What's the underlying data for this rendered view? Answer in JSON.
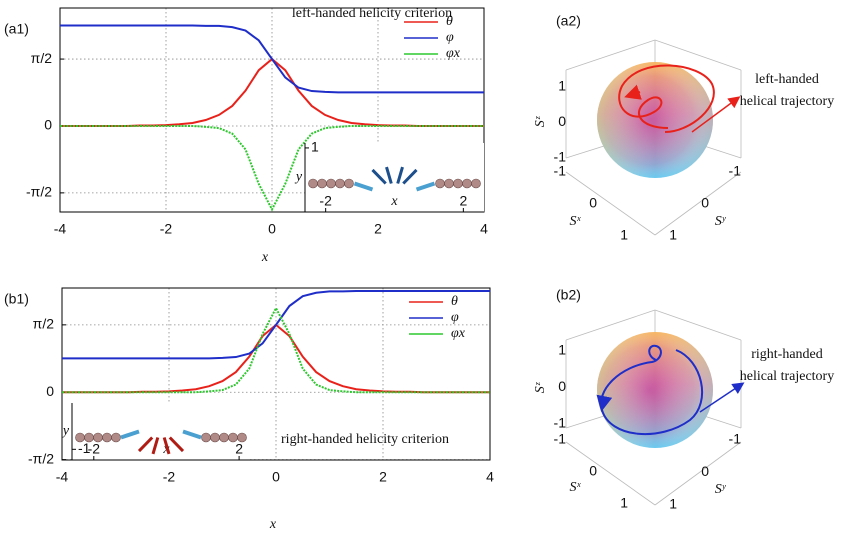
{
  "chart_data": [
    {
      "type": "line",
      "panel_label": "(a1)",
      "annotation": "left-handed helicity criterion",
      "xlabel": "x",
      "x": [
        -4,
        -3.75,
        -3.5,
        -3.25,
        -3,
        -2.75,
        -2.5,
        -2.25,
        -2,
        -1.75,
        -1.5,
        -1.25,
        -1,
        -0.75,
        -0.5,
        -0.25,
        0,
        0.25,
        0.5,
        0.75,
        1,
        1.25,
        1.5,
        1.75,
        2,
        2.25,
        2.5,
        2.75,
        3,
        3.25,
        3.5,
        3.75,
        4
      ],
      "series": [
        {
          "name": "θ",
          "color": "#e8221b",
          "values": [
            0,
            0,
            0,
            0,
            0,
            0,
            0.01,
            0.01,
            0.02,
            0.04,
            0.07,
            0.14,
            0.26,
            0.47,
            0.83,
            1.31,
            1.57,
            1.31,
            0.83,
            0.47,
            0.26,
            0.14,
            0.07,
            0.04,
            0.02,
            0.01,
            0.01,
            0,
            0,
            0,
            0,
            0,
            0
          ]
        },
        {
          "name": "φ",
          "color": "#1f2ec8",
          "values": [
            2.36,
            2.36,
            2.36,
            2.36,
            2.36,
            2.36,
            2.36,
            2.36,
            2.36,
            2.36,
            2.36,
            2.35,
            2.35,
            2.32,
            2.24,
            2.01,
            1.57,
            1.14,
            0.9,
            0.82,
            0.8,
            0.79,
            0.79,
            0.79,
            0.79,
            0.79,
            0.79,
            0.79,
            0.79,
            0.79,
            0.79,
            0.79,
            0.79
          ]
        },
        {
          "name": "φx",
          "color": "#2ec82e",
          "values": [
            0,
            0,
            0,
            0,
            0,
            0,
            0,
            0,
            0,
            0,
            0,
            -0.02,
            -0.05,
            -0.18,
            -0.55,
            -1.36,
            -1.96,
            -1.36,
            -0.55,
            -0.18,
            -0.05,
            -0.02,
            0,
            0,
            0,
            0,
            0,
            0,
            0,
            0,
            0,
            0,
            0
          ]
        }
      ],
      "xlim": [
        -4,
        4
      ],
      "ylim": [
        -2.02,
        2.77
      ],
      "xticks": [
        -4,
        -2,
        0,
        2,
        4
      ],
      "yticks": [
        {
          "value": -1.5708,
          "label": "-π/2"
        },
        0,
        {
          "value": 1.5708,
          "label": "π/2"
        }
      ],
      "grid": true,
      "inset": {
        "xlabel": "x",
        "ylabel": "y",
        "xlim": [
          -2.6,
          2.6
        ],
        "ylim": [
          -0.3,
          1.1
        ],
        "xticks": [
          -2,
          2
        ],
        "yticks": [
          1
        ]
      }
    },
    {
      "type": "sphere3d",
      "panel_label": "(a2)",
      "annotation": [
        "left-handed",
        "helical trajectory"
      ],
      "zlabel": "Sᶻ",
      "xlabel": "Sˣ",
      "ylabel": "Sʸ",
      "zticks": [
        1,
        0,
        -1
      ],
      "xticks": [
        -1,
        0,
        1
      ],
      "yticks": [
        1,
        0,
        -1
      ],
      "trajectory_color": "#e8221b"
    },
    {
      "type": "line",
      "panel_label": "(b1)",
      "annotation": "right-handed helicity criterion",
      "xlabel": "x",
      "x": [
        -4,
        -3.75,
        -3.5,
        -3.25,
        -3,
        -2.75,
        -2.5,
        -2.25,
        -2,
        -1.75,
        -1.5,
        -1.25,
        -1,
        -0.75,
        -0.5,
        -0.25,
        0,
        0.25,
        0.5,
        0.75,
        1,
        1.25,
        1.5,
        1.75,
        2,
        2.25,
        2.5,
        2.75,
        3,
        3.25,
        3.5,
        3.75,
        4
      ],
      "series": [
        {
          "name": "θ",
          "color": "#e8221b",
          "values": [
            0,
            0,
            0,
            0,
            0,
            0,
            0.01,
            0.01,
            0.02,
            0.04,
            0.07,
            0.14,
            0.26,
            0.47,
            0.83,
            1.31,
            1.57,
            1.31,
            0.83,
            0.47,
            0.26,
            0.14,
            0.07,
            0.04,
            0.02,
            0.01,
            0.01,
            0,
            0,
            0,
            0,
            0,
            0
          ]
        },
        {
          "name": "φ",
          "color": "#1f2ec8",
          "values": [
            0.79,
            0.79,
            0.79,
            0.79,
            0.79,
            0.79,
            0.79,
            0.79,
            0.79,
            0.79,
            0.79,
            0.79,
            0.8,
            0.82,
            0.9,
            1.14,
            1.57,
            2.01,
            2.24,
            2.32,
            2.35,
            2.35,
            2.36,
            2.36,
            2.36,
            2.36,
            2.36,
            2.36,
            2.36,
            2.36,
            2.36,
            2.36,
            2.36
          ]
        },
        {
          "name": "φx",
          "color": "#2ec82e",
          "values": [
            0,
            0,
            0,
            0,
            0,
            0,
            0,
            0,
            0,
            0,
            0,
            0.02,
            0.05,
            0.18,
            0.55,
            1.36,
            1.96,
            1.36,
            0.55,
            0.18,
            0.05,
            0.02,
            0,
            0,
            0,
            0,
            0,
            0,
            0,
            0,
            0,
            0,
            0
          ]
        }
      ],
      "xlim": [
        -4,
        4
      ],
      "ylim": [
        -1.58,
        2.43
      ],
      "xticks": [
        -4,
        -2,
        0,
        2,
        4
      ],
      "yticks": [
        {
          "value": -1.5708,
          "label": "-π/2"
        },
        0,
        {
          "value": 1.5708,
          "label": "π/2"
        }
      ],
      "grid": true,
      "inset": {
        "xlabel": "x",
        "ylabel": "y",
        "xlim": [
          -2.6,
          2.3
        ],
        "ylim": [
          -1.3,
          0.3
        ],
        "xticks": [
          -2,
          2
        ],
        "yticks": [
          -1
        ]
      }
    },
    {
      "type": "sphere3d",
      "panel_label": "(b2)",
      "annotation": [
        "right-handed",
        "helical trajectory"
      ],
      "zlabel": "Sᶻ",
      "xlabel": "Sˣ",
      "ylabel": "Sʸ",
      "zticks": [
        1,
        0,
        -1
      ],
      "xticks": [
        -1,
        0,
        1
      ],
      "yticks": [
        1,
        0,
        -1
      ],
      "trajectory_color": "#1f2ec8"
    }
  ]
}
